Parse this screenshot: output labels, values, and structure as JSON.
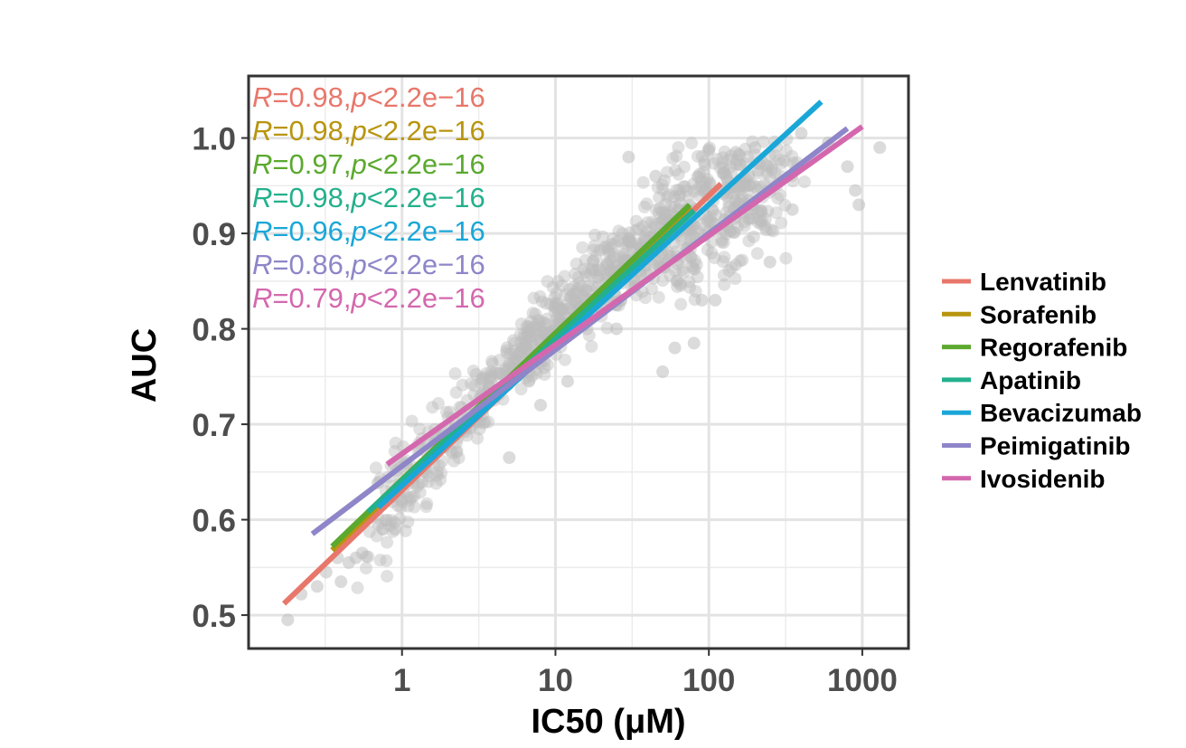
{
  "chart_data": {
    "type": "scatter",
    "xlabel": "IC50 (μM)",
    "ylabel": "AUC",
    "xscale": "log10",
    "xlim": [
      0.1,
      2000
    ],
    "ylim": [
      0.465,
      1.065
    ],
    "x_ticks": [
      1,
      10,
      100,
      1000
    ],
    "x_tick_labels": [
      "1",
      "10",
      "100",
      "1000"
    ],
    "y_ticks": [
      0.5,
      0.6,
      0.7,
      0.8,
      0.9,
      1.0
    ],
    "y_tick_labels": [
      "0.5",
      "0.6",
      "0.7",
      "0.8",
      "0.9",
      "1.0"
    ],
    "grid": true,
    "legend_position": "right",
    "point_color": "#bdbdbd",
    "series": [
      {
        "name": "Lenvatinib",
        "color": "#F8766D",
        "line_x": [
          0.17,
          120
        ],
        "line_y": [
          0.512,
          0.952
        ],
        "annotation": {
          "r_label": "R",
          "r_value": "=0.98,",
          "p_label": "p",
          "p_value": "<2.2e−16"
        }
      },
      {
        "name": "Sorafenib",
        "color": "#C49A00",
        "line_x": [
          0.35,
          75
        ],
        "line_y": [
          0.568,
          0.928
        ],
        "annotation": {
          "r_label": "R",
          "r_value": "=0.98,",
          "p_label": "p",
          "p_value": "<2.2e−16"
        }
      },
      {
        "name": "Regorafenib",
        "color": "#53B400",
        "line_x": [
          0.35,
          75
        ],
        "line_y": [
          0.572,
          0.93
        ],
        "annotation": {
          "r_label": "R",
          "r_value": "=0.97,",
          "p_label": "p",
          "p_value": "<2.2e−16"
        }
      },
      {
        "name": "Apatinib",
        "color": "#00C094",
        "line_x": [
          0.6,
          80
        ],
        "line_y": [
          0.608,
          0.924
        ],
        "annotation": {
          "r_label": "R",
          "r_value": "=0.98,",
          "p_label": "p",
          "p_value": "<2.2e−16"
        }
      },
      {
        "name": "Bevacizumab",
        "color": "#00B6EB",
        "line_x": [
          0.7,
          540
        ],
        "line_y": [
          0.613,
          1.038
        ],
        "annotation": {
          "r_label": "R",
          "r_value": "=0.96,",
          "p_label": "p",
          "p_value": "<2.2e−16"
        }
      },
      {
        "name": "Peimigatinib",
        "color": "#A58AFF",
        "line_x": [
          0.26,
          800
        ],
        "line_y": [
          0.585,
          1.01
        ],
        "annotation": {
          "r_label": "R",
          "r_value": "=0.86,",
          "p_label": "p",
          "p_value": "<2.2e−16"
        }
      },
      {
        "name": "Ivosidenib",
        "color": "#FB61D7",
        "line_x": [
          0.8,
          1000
        ],
        "line_y": [
          0.658,
          1.012
        ],
        "annotation": {
          "r_label": "R",
          "r_value": "=0.79,",
          "p_label": "p",
          "p_value": "<2.2e−16"
        }
      }
    ],
    "series_display_colors": [
      "#E8776B",
      "#B8950F",
      "#5BA92E",
      "#23B08C",
      "#1AA7D8",
      "#8E86C9",
      "#D468AE"
    ],
    "points": [
      [
        0.18,
        0.495
      ],
      [
        0.22,
        0.522
      ],
      [
        0.28,
        0.53
      ],
      [
        0.32,
        0.545
      ],
      [
        0.38,
        0.56
      ],
      [
        0.4,
        0.535
      ],
      [
        0.45,
        0.555
      ],
      [
        0.5,
        0.56
      ],
      [
        0.55,
        0.565
      ],
      [
        0.7,
        0.595
      ],
      [
        0.9,
        0.59
      ],
      [
        5,
        0.665
      ],
      [
        8,
        0.72
      ],
      [
        12,
        0.745
      ],
      [
        25,
        0.8
      ],
      [
        30,
        0.98
      ],
      [
        45,
        0.96
      ],
      [
        50,
        0.755
      ],
      [
        60,
        0.78
      ],
      [
        80,
        0.785
      ],
      [
        90,
        0.83
      ],
      [
        110,
        0.83
      ],
      [
        130,
        0.96
      ],
      [
        150,
        0.985
      ],
      [
        200,
        0.99
      ],
      [
        250,
        0.87
      ],
      [
        350,
        0.925
      ],
      [
        400,
        1.005
      ],
      [
        600,
        0.995
      ],
      [
        800,
        0.97
      ],
      [
        900,
        0.945
      ],
      [
        950,
        0.93
      ],
      [
        1300,
        0.99
      ]
    ]
  }
}
